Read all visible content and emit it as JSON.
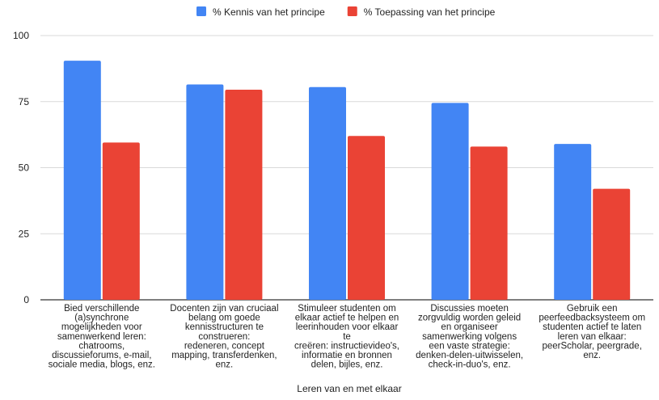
{
  "chart_data": {
    "type": "bar",
    "title": "",
    "xlabel": "Leren van en met elkaar",
    "ylabel": "",
    "ylim": [
      0,
      100
    ],
    "yticks": [
      0,
      25,
      50,
      75,
      100
    ],
    "grid": true,
    "legend_position": "top",
    "categories": [
      [
        "Bied verschillende",
        "(a)synchrone",
        "mogelijkheden voor",
        "samenwerkend leren:",
        "chatrooms,",
        "discussieforums, e-mail,",
        "sociale media, blogs, enz."
      ],
      [
        "Docenten zijn van cruciaal",
        "belang om goede",
        "kennisstructuren te",
        "construeren:",
        "redeneren, concept",
        "mapping, transferdenken,",
        "enz."
      ],
      [
        "Stimuleer studenten om",
        "elkaar actief te helpen en",
        "leerinhouden voor elkaar",
        "te",
        "creëren: instructievideo's,",
        "informatie en bronnen",
        "delen, bijles, enz."
      ],
      [
        "Discussies moeten",
        "zorgvuldig worden geleid",
        "en organiseer",
        "samenwerking volgens",
        "een vaste strategie:",
        "denken-delen-uitwisselen,",
        "check-in-duo's, enz."
      ],
      [
        "Gebruik een",
        "peerfeedbacksysteem om",
        "studenten actief te laten",
        "leren van elkaar:",
        "peerScholar, peergrade,",
        "enz."
      ]
    ],
    "series": [
      {
        "name": "% Kennis van het principe",
        "color": "#4285f4",
        "values": [
          90.5,
          81.5,
          80.5,
          74.5,
          59
        ]
      },
      {
        "name": "% Toepassing van het principe",
        "color": "#ea4335",
        "values": [
          59.5,
          79.5,
          62,
          58,
          42
        ]
      }
    ]
  }
}
